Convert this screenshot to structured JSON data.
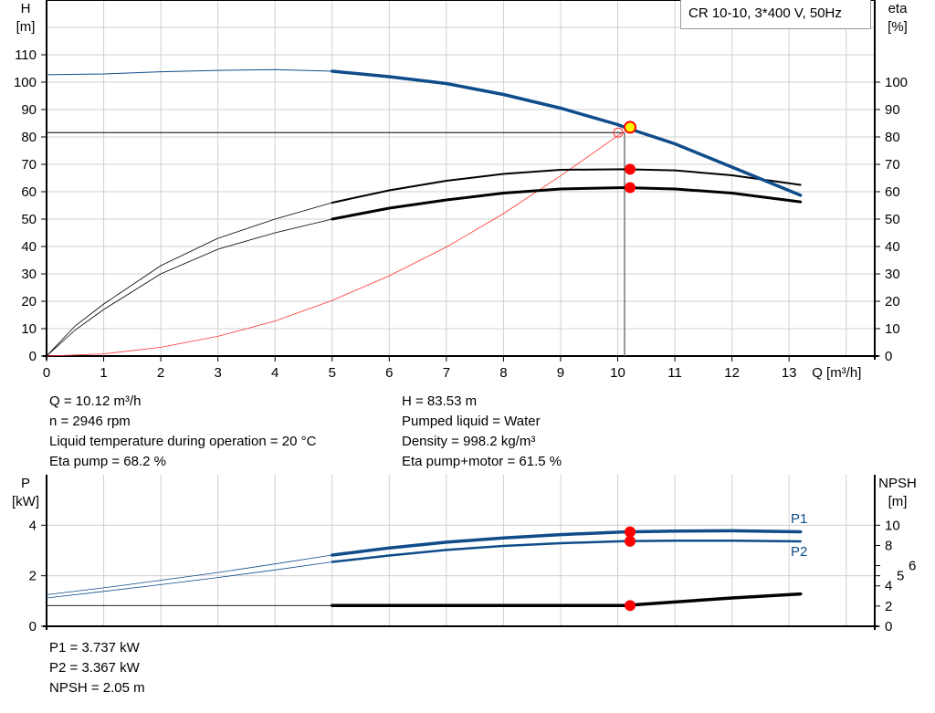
{
  "legend_title": "CR 10-10, 3*400 V, 50Hz",
  "colors": {
    "head": "#0f4c8a",
    "efficiency": "#000000",
    "system": "#ff3333",
    "power": "#0f4c8a",
    "npsh": "#000000",
    "duty_point": "#ff0000",
    "duty_fill": "#ffff00",
    "grid": "#d0d0d0"
  },
  "chart_data": [
    {
      "type": "line",
      "xlabel": "Q [m³/h]",
      "ylabel_left": [
        "H",
        "[m]"
      ],
      "ylabel_right": [
        "eta",
        "[%]"
      ],
      "xlim": [
        0,
        14.5
      ],
      "ylim_left": [
        0,
        130
      ],
      "ylim_right": [
        0,
        130
      ],
      "x_ticks": [
        0,
        1,
        2,
        3,
        4,
        5,
        6,
        7,
        8,
        9,
        10,
        11,
        12,
        13
      ],
      "y_ticks_left": [
        0,
        10,
        20,
        30,
        40,
        50,
        60,
        70,
        80,
        90,
        100,
        110
      ],
      "y_ticks_right": [
        0,
        10,
        20,
        30,
        40,
        50,
        60,
        70,
        80,
        90,
        100
      ],
      "grid": true,
      "series": [
        {
          "id": "head",
          "axis": "left",
          "x": [
            0,
            1,
            2,
            3,
            4,
            5,
            6,
            7,
            8,
            9,
            10,
            10.12,
            11,
            12,
            13.2
          ],
          "y": [
            102.7,
            103,
            103.8,
            104.3,
            104.6,
            104,
            102,
            99.5,
            95.5,
            90.5,
            84.5,
            83.53,
            77.5,
            69,
            58.7
          ]
        },
        {
          "id": "eta_pump",
          "axis": "right",
          "x": [
            0,
            0.5,
            1,
            2,
            3,
            4,
            5,
            6,
            7,
            8,
            9,
            10.12,
            11,
            12,
            13.2
          ],
          "y": [
            0,
            11,
            19,
            33,
            43,
            50,
            56,
            60.5,
            64,
            66.5,
            68,
            68.2,
            67.8,
            66,
            62.5
          ]
        },
        {
          "id": "eta_pump_motor",
          "axis": "right",
          "x": [
            0,
            0.5,
            1,
            2,
            3,
            4,
            5,
            6,
            7,
            8,
            9,
            10.12,
            11,
            12,
            13.2
          ],
          "y": [
            0,
            9.5,
            17,
            30,
            39,
            45,
            50,
            54,
            57,
            59.5,
            61,
            61.5,
            61,
            59.5,
            56.3
          ]
        },
        {
          "id": "system",
          "axis": "left",
          "x": [
            0,
            1,
            2,
            3,
            4,
            5,
            6,
            7,
            8,
            9,
            10.08
          ],
          "y": [
            0,
            0.8,
            3.2,
            7.2,
            12.8,
            20.3,
            29.3,
            39.8,
            52,
            65.8,
            81.6
          ]
        }
      ],
      "duty_point": {
        "x": 10.12,
        "h": 83.53,
        "system_h": 81.6,
        "eta_pump": 68.2,
        "eta_pump_motor": 61.5
      }
    },
    {
      "type": "line",
      "xlim": [
        0,
        14.5
      ],
      "ylabel_left": [
        "P",
        "[kW]"
      ],
      "ylabel_right": [
        "NPSH",
        "[m]"
      ],
      "ylim_left": [
        0,
        6
      ],
      "ylim_right": [
        0,
        15
      ],
      "y_ticks_left": [
        0,
        2,
        4
      ],
      "y_ticks_right": [
        0,
        2,
        4,
        5,
        6,
        8,
        10
      ],
      "grid": true,
      "series": [
        {
          "id": "P1",
          "name": "P1",
          "axis": "left",
          "x": [
            0,
            1,
            2,
            3,
            4,
            5,
            6,
            7,
            8,
            9,
            10.12,
            11,
            12,
            13.2
          ],
          "y": [
            1.25,
            1.52,
            1.82,
            2.13,
            2.47,
            2.82,
            3.1,
            3.33,
            3.5,
            3.63,
            3.737,
            3.77,
            3.78,
            3.74
          ]
        },
        {
          "id": "P2",
          "name": "P2",
          "axis": "left",
          "x": [
            0,
            1,
            2,
            3,
            4,
            5,
            6,
            7,
            8,
            9,
            10.12,
            11,
            12,
            13.2
          ],
          "y": [
            1.12,
            1.38,
            1.65,
            1.93,
            2.23,
            2.55,
            2.8,
            3.02,
            3.18,
            3.29,
            3.367,
            3.39,
            3.39,
            3.36
          ]
        },
        {
          "id": "NPSH",
          "axis": "right",
          "x": [
            0,
            5,
            9,
            10.12,
            11,
            12,
            13.2
          ],
          "y": [
            2.05,
            2.05,
            2.05,
            2.05,
            2.4,
            2.8,
            3.2
          ]
        }
      ],
      "duty_point": {
        "x": 10.12,
        "p1": 3.737,
        "p2": 3.367,
        "npsh": 2.05
      }
    }
  ],
  "info_left": [
    "Q = 10.12 m³/h",
    "n = 2946 rpm",
    "Liquid temperature during operation = 20 °C",
    "Eta pump = 68.2 %"
  ],
  "info_right": [
    "H = 83.53 m",
    "Pumped liquid = Water",
    "Density = 998.2 kg/m³",
    "Eta pump+motor = 61.5 %"
  ],
  "info_bottom": [
    "P1 = 3.737 kW",
    "P2 = 3.367 kW",
    "NPSH = 2.05 m"
  ]
}
